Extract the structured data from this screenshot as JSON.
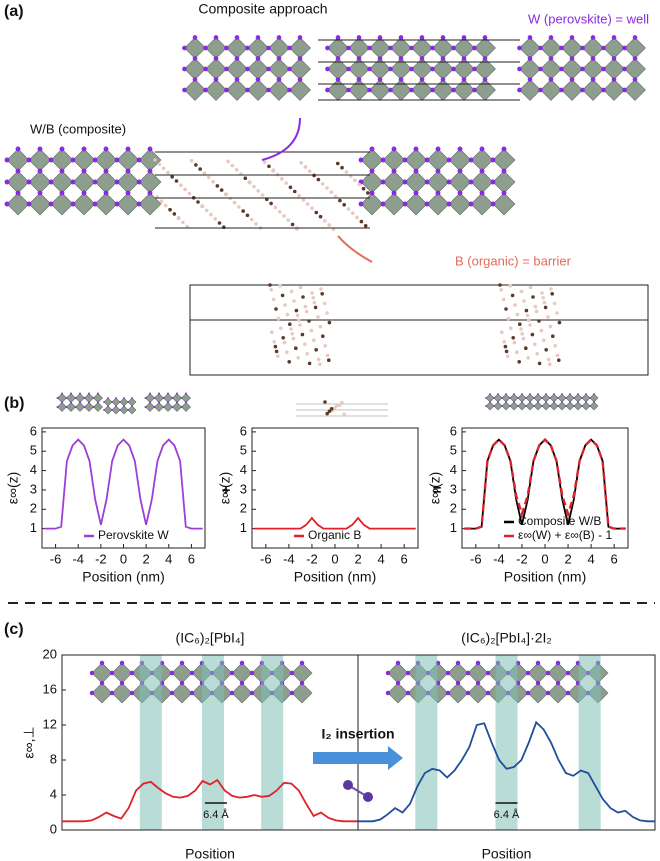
{
  "figure": {
    "panel_labels": [
      "(a)",
      "(b)",
      "(c)"
    ],
    "panel_a": {
      "title": "Composite approach",
      "well_label": "W (perovskite) = well",
      "composite_label": "W/B (composite)",
      "barrier_label": "B (organic) = barrier"
    },
    "operators": [
      "+",
      "="
    ]
  },
  "chart_data": [
    {
      "type": "line",
      "xlabel": "Position (nm)",
      "ylabel": "ε∞(z)",
      "x": [
        -7,
        -6.5,
        -6,
        -5.5,
        -5,
        -4.5,
        -4,
        -3.5,
        -3,
        -2.5,
        -2,
        -1.5,
        -1,
        -0.5,
        0,
        0.5,
        1,
        1.5,
        2,
        2.5,
        3,
        3.5,
        4,
        4.5,
        5,
        5.5,
        6,
        6.5,
        7
      ],
      "xlim": [
        -7.2,
        7.2
      ],
      "xticks": [
        -6,
        -4,
        -2,
        0,
        2,
        4,
        6
      ],
      "ylim": [
        0,
        6.2
      ],
      "yticks": [
        1,
        2,
        3,
        4,
        5,
        6
      ],
      "legend": "lower right",
      "series": [
        {
          "name": "Perovskite W",
          "color": "#9b3fd6",
          "values": [
            1,
            1,
            1,
            1.1,
            4.5,
            5.3,
            5.6,
            5.3,
            4.5,
            2.5,
            1.2,
            2.5,
            4.5,
            5.3,
            5.6,
            5.3,
            4.5,
            2.5,
            1.2,
            2.5,
            4.5,
            5.3,
            5.6,
            5.3,
            4.5,
            1.1,
            1,
            1,
            1
          ]
        }
      ]
    },
    {
      "type": "line",
      "xlabel": "Position (nm)",
      "ylabel": "ε∞(z)",
      "x": [
        -7,
        -6.5,
        -6,
        -5.5,
        -5,
        -4.5,
        -4,
        -3.5,
        -3,
        -2.5,
        -2,
        -1.5,
        -1,
        -0.5,
        0,
        0.5,
        1,
        1.5,
        2,
        2.5,
        3,
        3.5,
        4,
        4.5,
        5,
        5.5,
        6,
        6.5,
        7
      ],
      "xlim": [
        -7.2,
        7.2
      ],
      "xticks": [
        -6,
        -4,
        -2,
        0,
        2,
        4,
        6
      ],
      "ylim": [
        0,
        6.2
      ],
      "yticks": [
        1,
        2,
        3,
        4,
        5,
        6
      ],
      "legend": "lower right",
      "series": [
        {
          "name": "Organic B",
          "color": "#e0202a",
          "values": [
            1,
            1,
            1,
            1,
            1,
            1,
            1,
            1,
            1,
            1.2,
            1.55,
            1.2,
            1,
            1,
            1,
            1,
            1,
            1.2,
            1.55,
            1.2,
            1,
            1,
            1,
            1,
            1,
            1,
            1,
            1,
            1
          ]
        }
      ]
    },
    {
      "type": "line",
      "xlabel": "Position (nm)",
      "ylabel": "ε∞(z)",
      "x": [
        -7,
        -6.5,
        -6,
        -5.5,
        -5,
        -4.5,
        -4,
        -3.5,
        -3,
        -2.5,
        -2,
        -1.5,
        -1,
        -0.5,
        0,
        0.5,
        1,
        1.5,
        2,
        2.5,
        3,
        3.5,
        4,
        4.5,
        5,
        5.5,
        6,
        6.5,
        7
      ],
      "xlim": [
        -7.2,
        7.2
      ],
      "xticks": [
        -6,
        -4,
        -2,
        0,
        2,
        4,
        6
      ],
      "ylim": [
        0,
        6.2
      ],
      "yticks": [
        1,
        2,
        3,
        4,
        5,
        6
      ],
      "legend": "lower right",
      "series": [
        {
          "name": "Composite W/B",
          "color": "#000000",
          "values": [
            1,
            1,
            1,
            1.1,
            4.5,
            5.3,
            5.6,
            5.3,
            4.5,
            2.5,
            1.2,
            2.5,
            4.5,
            5.3,
            5.6,
            5.3,
            4.5,
            2.5,
            1.2,
            2.5,
            4.5,
            5.3,
            5.6,
            5.3,
            4.5,
            1.1,
            1,
            1,
            1
          ]
        },
        {
          "name": "ε∞(W) + ε∞(B) - 1",
          "color": "#e0202a",
          "dash": true,
          "values": [
            1,
            1,
            1,
            1.1,
            4.5,
            5.3,
            5.6,
            5.3,
            4.5,
            2.7,
            1.75,
            2.7,
            4.5,
            5.3,
            5.6,
            5.3,
            4.5,
            2.7,
            1.75,
            2.7,
            4.5,
            5.3,
            5.6,
            5.3,
            4.5,
            1.1,
            1,
            1,
            1
          ]
        }
      ]
    },
    {
      "type": "line",
      "title": "(IC₆)₂[PbI₄]",
      "xlabel": "Position",
      "ylabel": "ε∞,⊥",
      "ylim": [
        0,
        20
      ],
      "yticks": [
        0,
        4,
        8,
        12,
        16,
        20
      ],
      "annotations": [
        "6.4 Å"
      ],
      "series": [
        {
          "color": "#e0202a",
          "values": [
            1,
            1,
            1,
            1,
            1.1,
            1.5,
            2,
            1.6,
            1.3,
            2.5,
            4.5,
            5.3,
            5.5,
            4.8,
            4.2,
            3.8,
            3.7,
            3.9,
            4.5,
            5.6,
            5.2,
            5.7,
            4.5,
            3.9,
            3.7,
            3.8,
            4,
            3.8,
            3.9,
            4.5,
            5.4,
            5.3,
            4.5,
            3,
            1.6,
            2,
            1.4,
            1.1,
            1,
            1,
            1
          ]
        }
      ]
    },
    {
      "type": "line",
      "title": "(IC₆)₂[PbI₄]·2I₂",
      "xlabel": "Position",
      "ylim": [
        0,
        20
      ],
      "annotations": [
        "6.4 Å",
        "I₂ insertion"
      ],
      "series": [
        {
          "color": "#1f4e9c",
          "values": [
            1,
            1,
            1,
            1.2,
            1.8,
            2.5,
            2,
            3,
            5,
            6.5,
            7,
            6.8,
            6,
            6.8,
            8,
            9.5,
            12,
            12.2,
            10,
            8,
            7,
            7.2,
            8,
            10,
            12.3,
            11.5,
            10,
            8,
            6.5,
            6.2,
            6.8,
            6.5,
            5,
            3.5,
            2.5,
            2,
            2.2,
            1.5,
            1.1,
            1,
            1
          ]
        }
      ]
    }
  ]
}
